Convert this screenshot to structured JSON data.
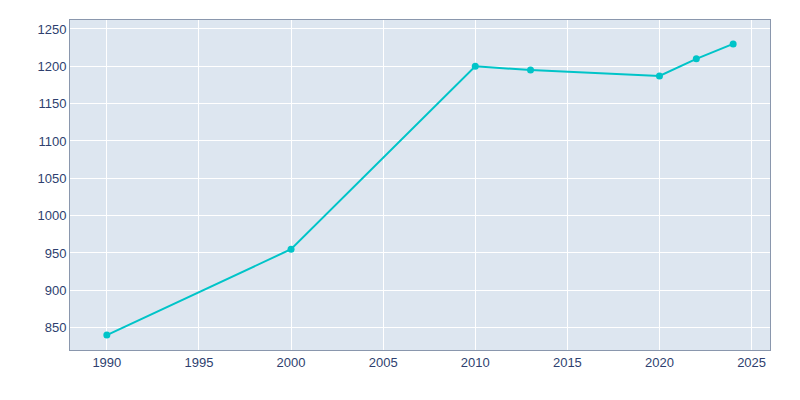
{
  "chart_data": {
    "type": "line",
    "x": [
      1990,
      2000,
      2010,
      2013,
      2020,
      2022,
      2024
    ],
    "values": [
      840,
      955,
      1200,
      1195,
      1187,
      1210,
      1230
    ],
    "color": "#00C4C8",
    "marker": "circle",
    "xlim": [
      1988,
      2026
    ],
    "ylim": [
      820,
      1262
    ],
    "xticks": [
      1990,
      1995,
      2000,
      2005,
      2010,
      2015,
      2020,
      2025
    ],
    "yticks": [
      850,
      900,
      950,
      1000,
      1050,
      1100,
      1150,
      1200,
      1250
    ],
    "grid": true
  }
}
